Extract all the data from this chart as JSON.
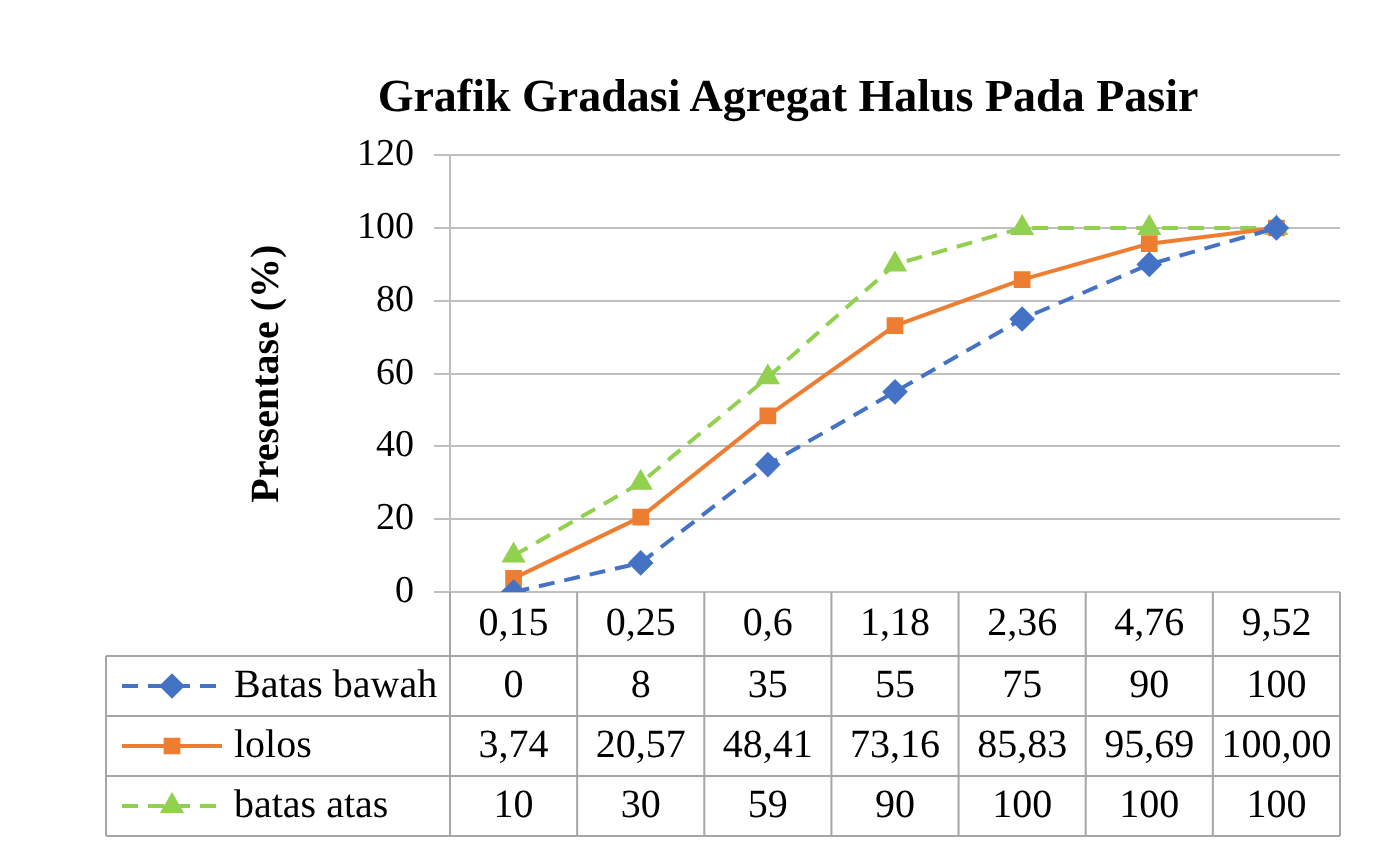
{
  "chart_data": {
    "type": "line",
    "title": "Grafik Gradasi Agregat Halus Pada Pasir",
    "ylabel": "Presentase (%)",
    "categories": [
      "0,15",
      "0,25",
      "0,6",
      "1,18",
      "2,36",
      "4,76",
      "9,52"
    ],
    "ylim": [
      0,
      120
    ],
    "yticks": [
      0,
      20,
      40,
      60,
      80,
      100,
      120
    ],
    "grid": "y",
    "legend": "bottom",
    "series": [
      {
        "name": "Batas bawah",
        "color": "#4472c4",
        "marker": "diamond",
        "line_style": "dashed",
        "values": [
          0,
          8,
          35,
          55,
          75,
          90,
          100
        ],
        "value_labels": [
          "0",
          "8",
          "35",
          "55",
          "75",
          "90",
          "100"
        ]
      },
      {
        "name": "lolos",
        "color": "#ed7d31",
        "marker": "square",
        "line_style": "solid",
        "values": [
          3.74,
          20.57,
          48.41,
          73.16,
          85.83,
          95.69,
          100.0
        ],
        "value_labels": [
          "3,74",
          "20,57",
          "48,41",
          "73,16",
          "85,83",
          "95,69",
          "100,00"
        ]
      },
      {
        "name": "batas atas",
        "color": "#92d050",
        "marker": "triangle",
        "line_style": "dashed",
        "values": [
          10,
          30,
          59,
          90,
          100,
          100,
          100
        ],
        "value_labels": [
          "10",
          "30",
          "59",
          "90",
          "100",
          "100",
          "100"
        ]
      }
    ]
  }
}
